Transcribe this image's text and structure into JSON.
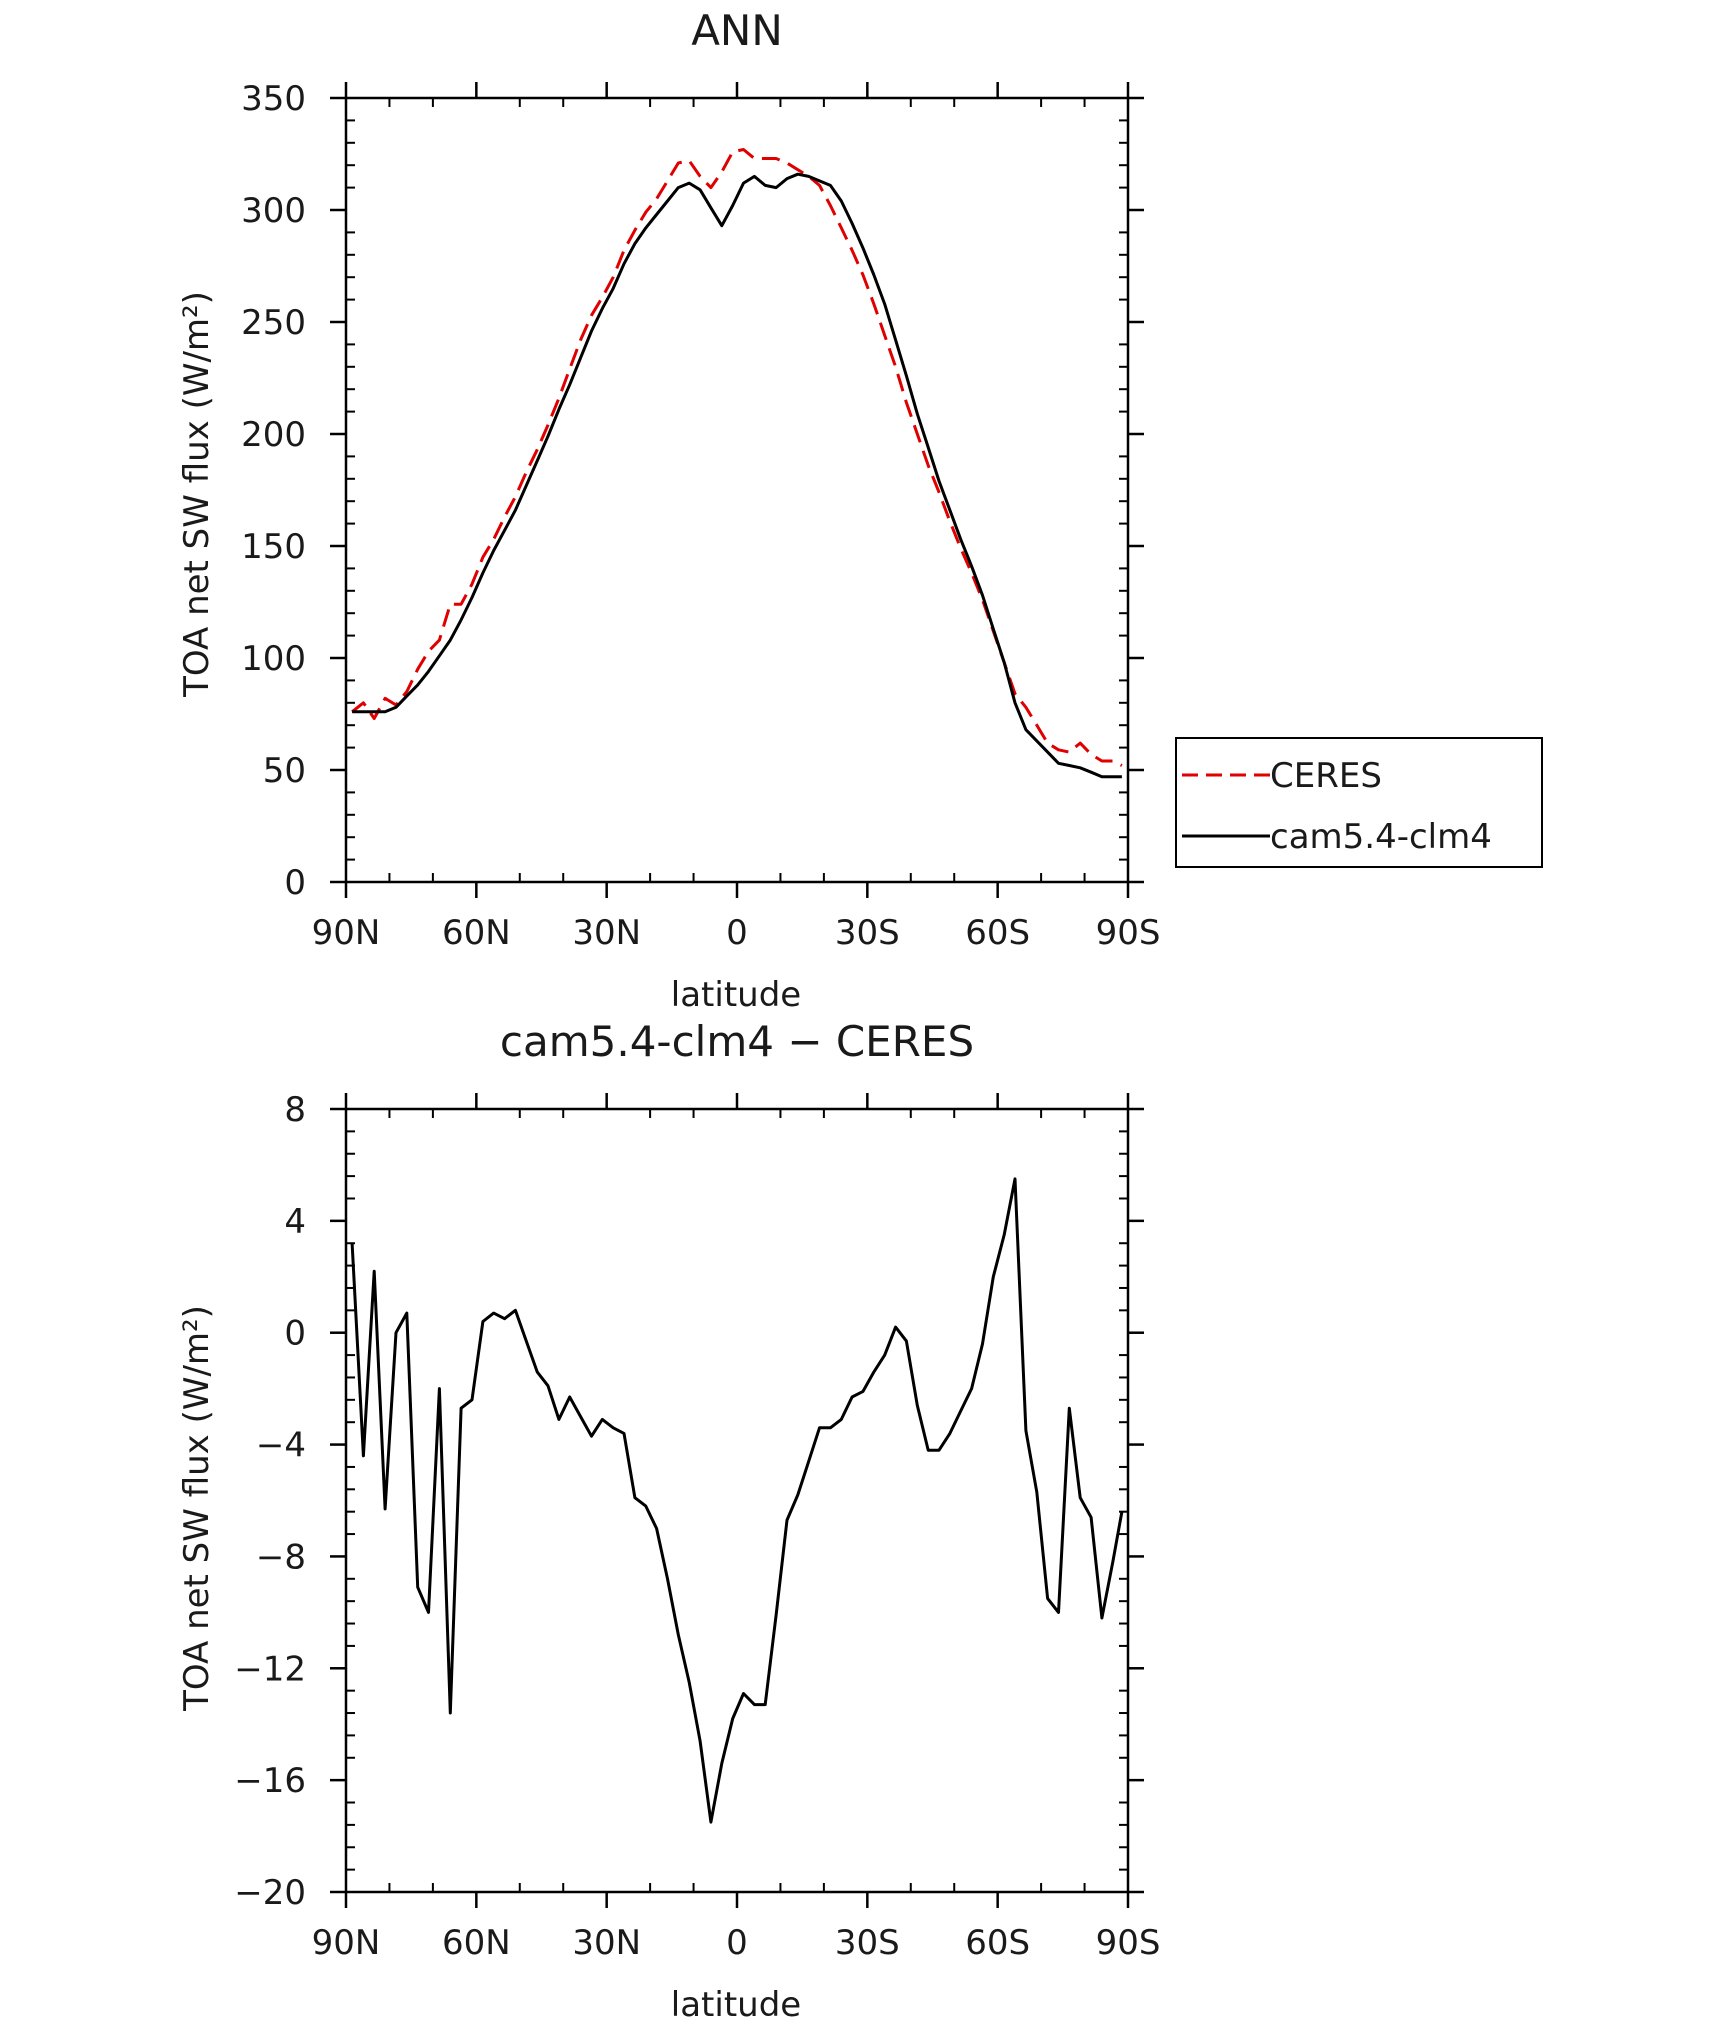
{
  "chart_data": [
    {
      "type": "line",
      "title": "ANN",
      "xlabel": "latitude",
      "ylabel": "TOA net SW flux (W/m²)",
      "xlim": [
        90,
        -90
      ],
      "ylim": [
        0,
        350
      ],
      "xticks": [
        90,
        60,
        30,
        0,
        -30,
        -60,
        -90
      ],
      "xtick_labels": [
        "90N",
        "60N",
        "30N",
        "0",
        "30S",
        "60S",
        "90S"
      ],
      "yticks": [
        0,
        50,
        100,
        150,
        200,
        250,
        300,
        350
      ],
      "ytick_labels": [
        "0",
        "50",
        "100",
        "150",
        "200",
        "250",
        "300",
        "350"
      ],
      "grid": false,
      "legend_position": "right",
      "series": [
        {
          "name": "CERES",
          "color": "#e00000",
          "style": "dashed",
          "x": [
            88.6,
            86,
            83.5,
            81,
            78.5,
            76,
            73.5,
            71,
            68.5,
            66,
            63.5,
            61,
            58.5,
            56,
            53.5,
            51,
            48.5,
            46,
            43.5,
            41,
            38.5,
            36,
            33.5,
            31,
            28.5,
            26,
            23.5,
            21,
            18.5,
            16,
            13.5,
            11,
            8.5,
            6,
            3.5,
            1,
            -1.5,
            -4,
            -6.5,
            -9,
            -11.5,
            -14,
            -16.5,
            -19,
            -21.5,
            -24,
            -26.5,
            -29,
            -31.5,
            -34,
            -36.5,
            -39,
            -41.5,
            -44,
            -46.5,
            -49,
            -51.5,
            -54,
            -56.5,
            -59,
            -61.5,
            -64,
            -66.5,
            -69,
            -71.5,
            -74,
            -76.5,
            -79,
            -81.5,
            -84,
            -86.5,
            -88.6
          ],
          "values": [
            76,
            80,
            73,
            82,
            79,
            85,
            95,
            103,
            108,
            124,
            124,
            133,
            145,
            153,
            163,
            172,
            183,
            193,
            204,
            216,
            229,
            242,
            253,
            261,
            270,
            282,
            291,
            299,
            305,
            313,
            321,
            322,
            315,
            310,
            317,
            326,
            327,
            323,
            323,
            323,
            321,
            318,
            315,
            311,
            302,
            292,
            282,
            271,
            258,
            244,
            230,
            214,
            200,
            186,
            174,
            161,
            149,
            138,
            126,
            112,
            98,
            84,
            78,
            70,
            62,
            59,
            58,
            62,
            57,
            54,
            54,
            52
          ]
        },
        {
          "name": "cam5.4-clm4",
          "color": "#000000",
          "style": "solid",
          "x": [
            88.6,
            86,
            83.5,
            81,
            78.5,
            76,
            73.5,
            71,
            68.5,
            66,
            63.5,
            61,
            58.5,
            56,
            53.5,
            51,
            48.5,
            46,
            43.5,
            41,
            38.5,
            36,
            33.5,
            31,
            28.5,
            26,
            23.5,
            21,
            18.5,
            16,
            13.5,
            11,
            8.5,
            6,
            3.5,
            1,
            -1.5,
            -4,
            -6.5,
            -9,
            -11.5,
            -14,
            -16.5,
            -19,
            -21.5,
            -24,
            -26.5,
            -29,
            -31.5,
            -34,
            -36.5,
            -39,
            -41.5,
            -44,
            -46.5,
            -49,
            -51.5,
            -54,
            -56.5,
            -59,
            -61.5,
            -64,
            -66.5,
            -69,
            -71.5,
            -74,
            -76.5,
            -79,
            -81.5,
            -84,
            -86.5,
            -88.6
          ],
          "values": [
            76,
            76,
            76,
            76,
            78,
            83,
            88,
            94,
            101,
            108,
            117,
            127,
            138,
            148,
            157,
            166,
            177,
            188,
            199,
            211,
            222,
            234,
            246,
            256,
            265,
            276,
            285,
            292,
            298,
            304,
            310,
            312,
            309,
            301,
            293,
            302,
            312,
            315,
            311,
            310,
            314,
            316,
            315,
            313,
            311,
            304,
            294,
            283,
            271,
            258,
            242,
            226,
            209,
            194,
            179,
            166,
            153,
            141,
            128,
            113,
            98,
            80,
            68,
            63,
            58,
            53,
            52,
            51,
            49,
            47,
            47,
            47
          ]
        }
      ]
    },
    {
      "type": "line",
      "title": "cam5.4-clm4 − CERES",
      "xlabel": "latitude",
      "ylabel": "TOA net SW flux (W/m²)",
      "xlim": [
        90,
        -90
      ],
      "ylim": [
        -20,
        8
      ],
      "xticks": [
        90,
        60,
        30,
        0,
        -30,
        -60,
        -90
      ],
      "xtick_labels": [
        "90N",
        "60N",
        "30N",
        "0",
        "30S",
        "60S",
        "90S"
      ],
      "yticks": [
        8,
        4,
        0,
        -4,
        -8,
        -12,
        -16,
        -20
      ],
      "ytick_labels": [
        "8",
        "4",
        "0",
        "−4",
        "−8",
        "−12",
        "−16",
        "−20"
      ],
      "grid": false,
      "series": [
        {
          "color": "#000000",
          "style": "solid",
          "x": [
            88.6,
            86,
            83.5,
            81,
            78.5,
            76,
            73.5,
            71,
            68.5,
            66,
            63.5,
            61,
            58.5,
            56,
            53.5,
            51,
            48.5,
            46,
            43.5,
            41,
            38.5,
            36,
            33.5,
            31,
            28.5,
            26,
            23.5,
            21,
            18.5,
            16,
            13.5,
            11,
            8.5,
            6,
            3.5,
            1,
            -1.5,
            -4,
            -6.5,
            -9,
            -11.5,
            -14,
            -16.5,
            -19,
            -21.5,
            -24,
            -26.5,
            -29,
            -31.5,
            -34,
            -36.5,
            -39,
            -41.5,
            -44,
            -46.5,
            -49,
            -51.5,
            -54,
            -56.5,
            -59,
            -61.5,
            -64,
            -66.5,
            -69,
            -71.5,
            -74,
            -76.5,
            -79,
            -81.5,
            -84,
            -86.5,
            -88.6
          ],
          "values": [
            3.2,
            -4.4,
            2.2,
            -6.3,
            0,
            0.7,
            -9.1,
            -10,
            -2,
            -13.6,
            -2.7,
            -2.4,
            0.4,
            0.7,
            0.5,
            0.8,
            -0.3,
            -1.4,
            -1.9,
            -3.1,
            -2.3,
            -3,
            -3.7,
            -3.1,
            -3.4,
            -3.6,
            -5.9,
            -6.2,
            -7,
            -8.8,
            -10.8,
            -12.5,
            -14.6,
            -17.5,
            -15.4,
            -13.8,
            -12.9,
            -13.3,
            -13.3,
            -10.1,
            -6.7,
            -5.8,
            -4.6,
            -3.4,
            -3.4,
            -3.1,
            -2.3,
            -2.1,
            -1.4,
            -0.8,
            0.2,
            -0.3,
            -2.6,
            -4.2,
            -4.2,
            -3.6,
            -2.8,
            -2,
            -0.4,
            2,
            3.5,
            5.5,
            -3.5,
            -5.7,
            -9.5,
            -10,
            -2.7,
            -5.9,
            -6.6,
            -10.2,
            -8.2,
            -6.4
          ]
        }
      ]
    }
  ]
}
